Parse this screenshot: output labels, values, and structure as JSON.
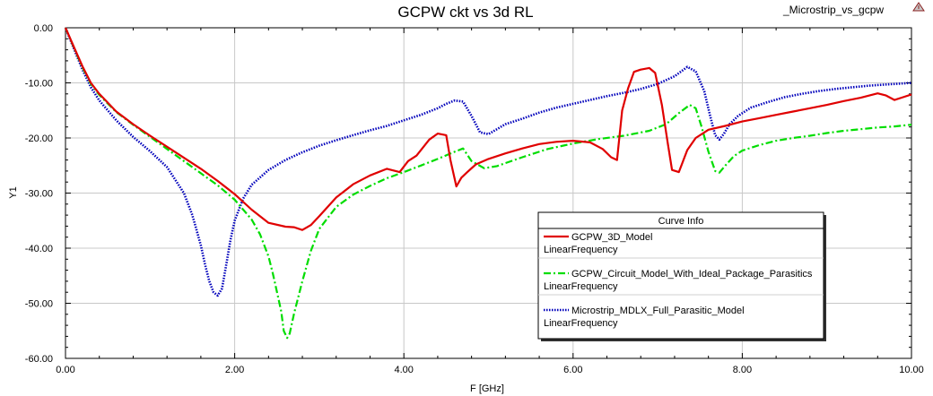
{
  "header": {
    "project_name": "_Microstrip_vs_gcpw",
    "logo_icon": "ansys-logo-icon"
  },
  "chart_data": {
    "type": "line",
    "title": "GCPW ckt vs 3d RL",
    "xlabel": "F [GHz]",
    "ylabel": "Y1",
    "xlim": [
      0,
      10
    ],
    "ylim": [
      -60,
      0
    ],
    "grid": true,
    "x_ticks": [
      "0.00",
      "2.00",
      "4.00",
      "6.00",
      "8.00",
      "10.00"
    ],
    "y_ticks": [
      "0.00",
      "-10.00",
      "-20.00",
      "-30.00",
      "-40.00",
      "-50.00",
      "-60.00"
    ],
    "legend": {
      "title": "Curve Info",
      "placement": "lower-right"
    },
    "series": [
      {
        "name": "GCPW_3D_Model",
        "sweep": "LinearFrequency",
        "color": "#e00000",
        "style": "solid",
        "x": [
          0,
          0.1,
          0.2,
          0.3,
          0.4,
          0.6,
          0.8,
          1.0,
          1.2,
          1.4,
          1.6,
          1.8,
          2.0,
          2.2,
          2.4,
          2.6,
          2.7,
          2.8,
          2.9,
          3.0,
          3.2,
          3.4,
          3.6,
          3.8,
          3.95,
          4.05,
          4.15,
          4.3,
          4.4,
          4.5,
          4.55,
          4.62,
          4.68,
          4.75,
          4.85,
          5.0,
          5.2,
          5.4,
          5.6,
          5.8,
          6.0,
          6.2,
          6.35,
          6.45,
          6.52,
          6.58,
          6.65,
          6.72,
          6.8,
          6.9,
          6.97,
          7.05,
          7.12,
          7.17,
          7.25,
          7.35,
          7.45,
          7.6,
          7.8,
          8.0,
          8.2,
          8.4,
          8.6,
          8.8,
          9.0,
          9.2,
          9.4,
          9.6,
          9.7,
          9.8,
          9.9,
          10.0
        ],
        "y": [
          0,
          -3.5,
          -7,
          -10,
          -12,
          -15.2,
          -17.5,
          -19.6,
          -21.6,
          -23.6,
          -25.6,
          -27.8,
          -30.2,
          -33,
          -35.4,
          -36.1,
          -36.2,
          -36.7,
          -35.8,
          -34.2,
          -30.8,
          -28.4,
          -26.8,
          -25.6,
          -26.2,
          -24.2,
          -23.2,
          -20.3,
          -19.2,
          -19.5,
          -24,
          -28.8,
          -27.2,
          -26.2,
          -24.8,
          -23.8,
          -22.8,
          -21.9,
          -21.1,
          -20.7,
          -20.5,
          -20.8,
          -22,
          -23.5,
          -24,
          -15,
          -11,
          -8,
          -7.6,
          -7.3,
          -8.2,
          -14,
          -21,
          -25.8,
          -26.2,
          -22.2,
          -20,
          -18.5,
          -17.8,
          -17,
          -16.4,
          -15.8,
          -15.2,
          -14.6,
          -14,
          -13.3,
          -12.7,
          -11.9,
          -12.3,
          -13.1,
          -12.6,
          -12.1
        ]
      },
      {
        "name": "GCPW_Circuit_Model_With_Ideal_Package_Parasitics",
        "sweep": "LinearFrequency",
        "color": "#00dd00",
        "style": "dashdot",
        "x": [
          0,
          0.1,
          0.2,
          0.3,
          0.4,
          0.6,
          0.8,
          1.0,
          1.2,
          1.4,
          1.6,
          1.8,
          2.0,
          2.2,
          2.3,
          2.4,
          2.45,
          2.5,
          2.55,
          2.58,
          2.62,
          2.65,
          2.7,
          2.75,
          2.8,
          2.9,
          3.0,
          3.2,
          3.4,
          3.6,
          3.8,
          4.0,
          4.2,
          4.4,
          4.6,
          4.7,
          4.8,
          4.95,
          5.1,
          5.4,
          5.7,
          6.0,
          6.3,
          6.6,
          6.9,
          7.1,
          7.25,
          7.38,
          7.45,
          7.52,
          7.6,
          7.68,
          7.73,
          7.8,
          7.9,
          8.0,
          8.2,
          8.4,
          8.6,
          8.8,
          9.0,
          9.2,
          9.4,
          9.6,
          9.8,
          10.0
        ],
        "y": [
          0,
          -3.6,
          -7.2,
          -10.2,
          -12.2,
          -15.3,
          -17.6,
          -19.8,
          -22,
          -24.2,
          -26.4,
          -28.6,
          -31.2,
          -34.8,
          -37.5,
          -41.5,
          -44.5,
          -48,
          -51.5,
          -55,
          -56.3,
          -55.5,
          -52,
          -49,
          -46,
          -40.5,
          -36.5,
          -32.5,
          -30.3,
          -28.7,
          -27.3,
          -26.2,
          -25,
          -23.8,
          -22.5,
          -21.9,
          -24.2,
          -25.5,
          -25.1,
          -23.5,
          -22,
          -21,
          -20.2,
          -19.6,
          -18.7,
          -17.5,
          -15.5,
          -14,
          -14.6,
          -18,
          -22.5,
          -26,
          -26.3,
          -25,
          -23.3,
          -22.3,
          -21.3,
          -20.5,
          -20,
          -19.6,
          -19.1,
          -18.7,
          -18.4,
          -18.1,
          -17.9,
          -17.6
        ]
      },
      {
        "name": "Microstrip_MDLX_Full_Parasitic_Model",
        "sweep": "LinearFrequency",
        "color": "#0000bb",
        "style": "dotted",
        "x": [
          0,
          0.1,
          0.2,
          0.3,
          0.4,
          0.6,
          0.8,
          1.0,
          1.2,
          1.4,
          1.5,
          1.6,
          1.65,
          1.7,
          1.75,
          1.8,
          1.85,
          1.9,
          1.95,
          2.0,
          2.1,
          2.2,
          2.4,
          2.6,
          2.8,
          3.0,
          3.2,
          3.4,
          3.6,
          3.8,
          4.0,
          4.2,
          4.4,
          4.5,
          4.6,
          4.7,
          4.8,
          4.9,
          5.0,
          5.2,
          5.4,
          5.6,
          5.8,
          6.0,
          6.2,
          6.4,
          6.6,
          6.8,
          7.0,
          7.2,
          7.35,
          7.45,
          7.55,
          7.62,
          7.68,
          7.73,
          7.78,
          7.85,
          7.95,
          8.1,
          8.3,
          8.5,
          8.7,
          8.9,
          9.1,
          9.3,
          9.5,
          9.7,
          9.9,
          10.0
        ],
        "y": [
          0,
          -3.8,
          -7.6,
          -10.8,
          -13.2,
          -16.8,
          -19.8,
          -22.4,
          -25.3,
          -30,
          -34,
          -39.5,
          -43,
          -46,
          -48,
          -48.6,
          -47.3,
          -43,
          -38.5,
          -35,
          -31,
          -28.5,
          -25.8,
          -24,
          -22.6,
          -21.4,
          -20.4,
          -19.5,
          -18.6,
          -17.8,
          -16.8,
          -15.8,
          -14.6,
          -13.8,
          -13.2,
          -13.4,
          -16,
          -19,
          -19.3,
          -17.5,
          -16.5,
          -15.4,
          -14.5,
          -13.8,
          -13.1,
          -12.4,
          -11.8,
          -11.1,
          -10.2,
          -8.8,
          -7.1,
          -7.9,
          -11.5,
          -16,
          -19.5,
          -20.3,
          -19.3,
          -17.5,
          -16,
          -14.5,
          -13.5,
          -12.6,
          -12,
          -11.5,
          -11.1,
          -10.8,
          -10.5,
          -10.3,
          -10.1,
          -10
        ]
      }
    ]
  }
}
